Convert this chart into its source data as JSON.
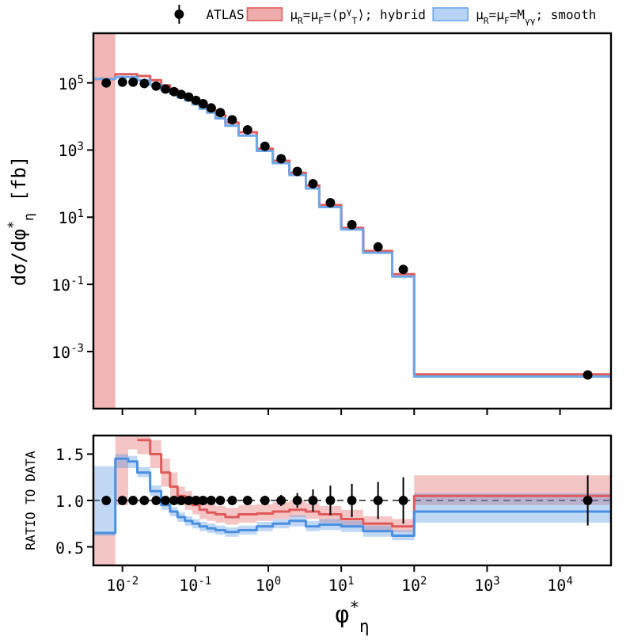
{
  "chart_data": [
    {
      "type": "scatter",
      "ylabel": "dσ/dφ$^{*}$$_{η}$ [fb]",
      "log": "xy",
      "xlim": [
        0.004,
        50000
      ],
      "ylim": [
        2e-05,
        3000000
      ],
      "xticks": [
        {
          "value": 0.01,
          "label": null
        },
        {
          "value": 0.1,
          "label": null
        },
        {
          "value": 1,
          "label": null
        },
        {
          "value": 10,
          "label": null
        },
        {
          "value": 100,
          "label": null
        },
        {
          "value": 1000,
          "label": null
        },
        {
          "value": 10000,
          "label": null
        }
      ],
      "yticks": [
        {
          "value": 0.001,
          "label": "10$^{-3}$"
        },
        {
          "value": 0.1,
          "label": "10$^{-1}$"
        },
        {
          "value": 10,
          "label": "10$^{1}$"
        },
        {
          "value": 1000,
          "label": "10$^{3}$"
        },
        {
          "value": 100000,
          "label": "10$^{5}$"
        }
      ],
      "tick_labels": "y",
      "legend": "top",
      "grid": false,
      "bands": [
        {
          "axis": "x",
          "from": 0.004,
          "to": 0.008,
          "label": null,
          "color": "#e05a5a"
        }
      ],
      "series": [
        {
          "name": "μ$_{R}$=μ$_{F}$=⟨p$^{γ}$$_{T}$⟩; hybrid",
          "type": "step",
          "color": "#e05a5a",
          "x": [
            0.004,
            0.008,
            0.012,
            0.016,
            0.024,
            0.034,
            0.045,
            0.057,
            0.072,
            0.091,
            0.114,
            0.145,
            0.189,
            0.258,
            0.391,
            0.695,
            1.153,
            1.947,
            3.277,
            5,
            10,
            20,
            50,
            100,
            50000
          ],
          "values": [
            130000,
            180000,
            180000,
            160000,
            120000,
            85000,
            63000,
            47000,
            38000,
            29000,
            22000,
            16000,
            11000,
            6600,
            3400,
            1100,
            480,
            210,
            88,
            23,
            4.8,
            0.98,
            0.2,
            0.00021,
            0.00021
          ]
        },
        {
          "name": "μ$_{R}$=μ$_{F}$=M$_{γγ}$; smooth",
          "type": "step",
          "color": "#6fa8e8",
          "x": [
            0.004,
            0.008,
            0.012,
            0.016,
            0.024,
            0.034,
            0.045,
            0.057,
            0.072,
            0.091,
            0.114,
            0.145,
            0.189,
            0.258,
            0.391,
            0.695,
            1.153,
            1.947,
            3.277,
            5,
            10,
            20,
            50,
            100,
            50000
          ],
          "values": [
            130000,
            150000,
            150000,
            120000,
            88000,
            62000,
            48000,
            37000,
            30000,
            23000,
            17000,
            13000,
            8800,
            5300,
            2700,
            940,
            410,
            180,
            72,
            20,
            4.3,
            0.87,
            0.17,
            0.00018,
            0.00018
          ]
        },
        {
          "name": "ATLAS",
          "marker": "circle",
          "color": "#000000",
          "x": [
            0.006,
            0.01,
            0.014,
            0.02,
            0.029,
            0.039,
            0.051,
            0.064,
            0.081,
            0.102,
            0.128,
            0.165,
            0.22,
            0.32,
            0.52,
            0.9,
            1.5,
            2.5,
            4.1,
            7.1,
            14,
            32,
            71,
            24000
          ],
          "values": [
            100000,
            105000,
            105000,
            95000,
            80000,
            65000,
            55000,
            45000,
            38000,
            30000,
            24000,
            18000,
            13000,
            8000,
            4000,
            1300,
            550,
            230,
            100,
            27,
            6,
            1.3,
            0.28,
            0.0002
          ]
        }
      ]
    },
    {
      "type": "step",
      "xlabel": "φ$^{*}$$_{η}$",
      "ylabel": "RATIO TO DATA",
      "log": "x",
      "xlim": [
        0.004,
        50000
      ],
      "ylim": [
        0.3,
        1.7
      ],
      "xticks": [
        {
          "value": 0.01,
          "label": "10$^{-2}$"
        },
        {
          "value": 0.1,
          "label": "10$^{-1}$"
        },
        {
          "value": 1,
          "label": "10$^{0}$"
        },
        {
          "value": 10,
          "label": "10$^{1}$"
        },
        {
          "value": 100,
          "label": "10$^{2}$"
        },
        {
          "value": 1000,
          "label": "10$^{3}$"
        },
        {
          "value": 10000,
          "label": "10$^{4}$"
        }
      ],
      "yticks": [
        {
          "value": 0.5,
          "label": "0.5"
        },
        {
          "value": 1,
          "label": "1.0"
        },
        {
          "value": 1.5,
          "label": "1.5"
        }
      ],
      "grid": false,
      "ref_lines": [
        {
          "axis": "y",
          "value": 1,
          "label": null,
          "color": "#555555",
          "line_style": "dashed"
        }
      ],
      "series": [
        {
          "color": "#e05a5a",
          "x": [
            0.004,
            0.008,
            0.012,
            0.016,
            0.024,
            0.034,
            0.045,
            0.057,
            0.072,
            0.091,
            0.114,
            0.145,
            0.189,
            0.258,
            0.391,
            0.695,
            1.153,
            1.947,
            3.277,
            5,
            10,
            20,
            50,
            100,
            50000
          ],
          "values": [
            null,
            null,
            null,
            1.65,
            1.5,
            1.3,
            1.15,
            1.05,
            1.0,
            0.95,
            0.9,
            0.87,
            0.85,
            0.82,
            0.85,
            0.86,
            0.88,
            0.9,
            0.88,
            0.85,
            0.8,
            0.75,
            0.72,
            1.05,
            1.05
          ],
          "lower": [
            0.3,
            0.95,
            1.55,
            1.5,
            1.35,
            1.15,
            1.0,
            0.95,
            0.9,
            0.85,
            0.8,
            0.78,
            0.76,
            0.74,
            0.76,
            0.78,
            0.8,
            0.82,
            0.8,
            0.76,
            0.72,
            0.68,
            0.66,
            0.95,
            0.95
          ],
          "upper": [
            0.65,
            1.7,
            1.7,
            1.7,
            1.65,
            1.45,
            1.3,
            1.15,
            1.1,
            1.05,
            1.0,
            0.96,
            0.94,
            0.92,
            0.95,
            0.96,
            0.98,
            1.0,
            0.97,
            0.94,
            0.9,
            0.83,
            0.8,
            1.27,
            1.27
          ]
        },
        {
          "color": "#4a8fe0",
          "x": [
            0.004,
            0.008,
            0.012,
            0.016,
            0.024,
            0.034,
            0.045,
            0.057,
            0.072,
            0.091,
            0.114,
            0.145,
            0.189,
            0.258,
            0.391,
            0.695,
            1.153,
            1.947,
            3.277,
            5,
            10,
            20,
            50,
            100,
            50000
          ],
          "values": [
            0.65,
            1.45,
            1.42,
            1.3,
            1.1,
            0.95,
            0.88,
            0.82,
            0.78,
            0.75,
            0.72,
            0.7,
            0.68,
            0.66,
            0.68,
            0.72,
            0.75,
            0.78,
            0.72,
            0.74,
            0.72,
            0.67,
            0.62,
            0.88,
            0.88
          ],
          "lower": [
            0.62,
            1.35,
            1.35,
            1.25,
            1.05,
            0.9,
            0.83,
            0.77,
            0.73,
            0.7,
            0.67,
            0.65,
            0.63,
            0.61,
            0.63,
            0.67,
            0.7,
            0.72,
            0.67,
            0.68,
            0.66,
            0.61,
            0.57,
            0.76,
            0.76
          ],
          "upper": [
            1.37,
            1.5,
            1.48,
            1.36,
            1.16,
            1.0,
            0.93,
            0.87,
            0.83,
            0.8,
            0.77,
            0.75,
            0.73,
            0.71,
            0.73,
            0.77,
            0.8,
            0.84,
            0.78,
            0.8,
            0.78,
            0.73,
            0.68,
            1.08,
            1.08
          ]
        },
        {
          "type": "scatter",
          "marker": "circle",
          "color": "#000000",
          "x": [
            0.006,
            0.01,
            0.014,
            0.02,
            0.029,
            0.039,
            0.051,
            0.064,
            0.081,
            0.102,
            0.128,
            0.165,
            0.22,
            0.32,
            0.52,
            0.9,
            1.5,
            2.5,
            4.1,
            7.1,
            14,
            32,
            71,
            24000
          ],
          "values": [
            1,
            1,
            1,
            1,
            1,
            1,
            1,
            1,
            1,
            1,
            1,
            1,
            1,
            1,
            1,
            1,
            1,
            1,
            1,
            1,
            1,
            1,
            1,
            1
          ],
          "errors": [
            0.04,
            0.04,
            0.04,
            0.04,
            0.04,
            0.04,
            0.04,
            0.04,
            0.04,
            0.04,
            0.04,
            0.04,
            0.04,
            0.04,
            0.05,
            0.05,
            0.06,
            0.08,
            0.12,
            0.16,
            0.18,
            0.2,
            0.25,
            0.27
          ]
        }
      ]
    }
  ]
}
